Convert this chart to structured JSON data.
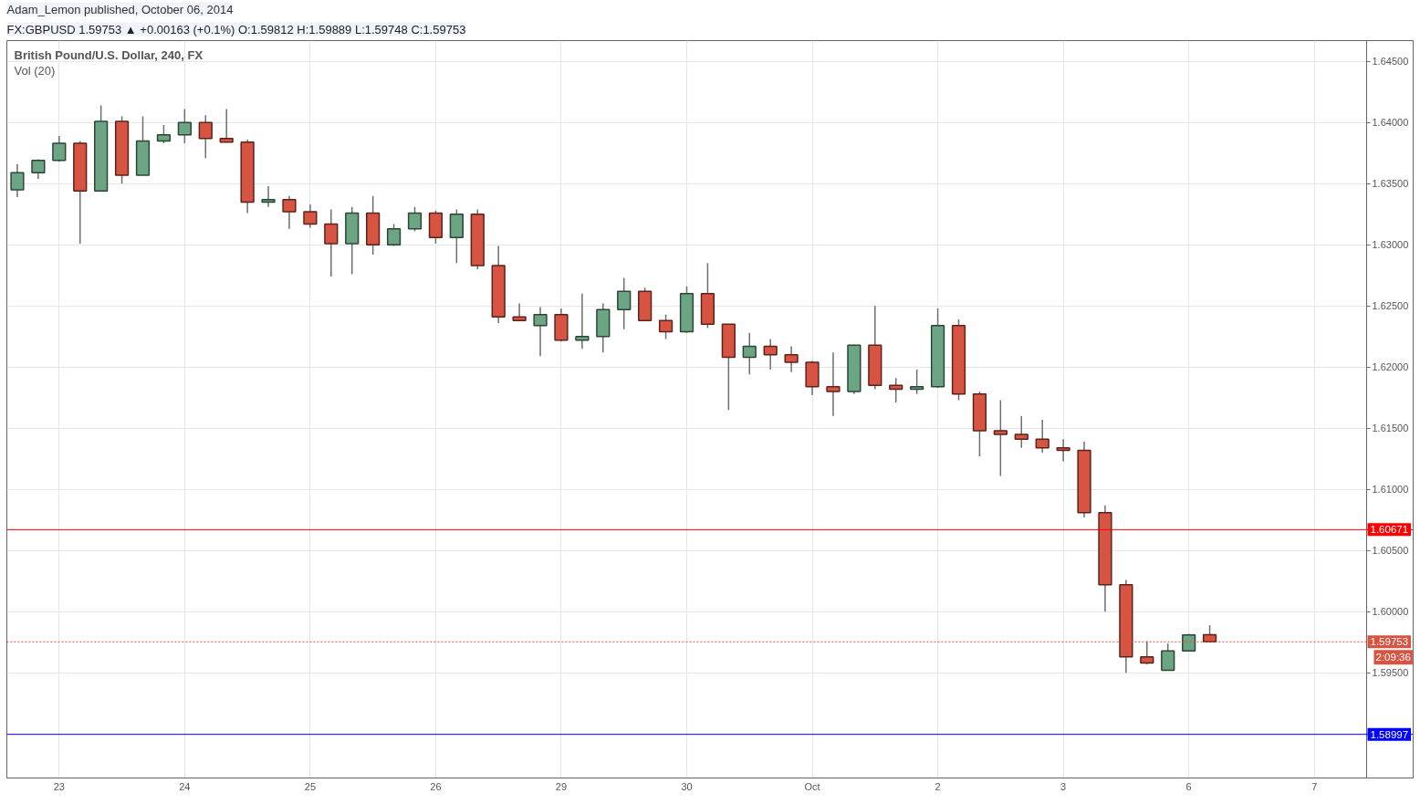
{
  "chart_data": {
    "type": "candlestick",
    "title": "British Pound/U.S. Dollar, 240, FX",
    "subtitle": "FX:GBPUSD 1.59753 ▲ +0.00163 (+0.1%) O:1.59812 H:1.59889 L:1.59748 C:1.59753",
    "annotations": [
      "Adam_Lemon published, October 06, 2014",
      "Vol (20)",
      "2:09:36"
    ],
    "categories": [
      null,
      null,
      "23",
      null,
      null,
      null,
      null,
      null,
      "24",
      null,
      null,
      null,
      null,
      null,
      "25",
      null,
      null,
      null,
      null,
      null,
      "26",
      null,
      null,
      null,
      null,
      null,
      "29",
      null,
      null,
      null,
      null,
      null,
      "30",
      null,
      null,
      null,
      null,
      null,
      "Oct",
      null,
      null,
      null,
      null,
      null,
      "2",
      null,
      null,
      null,
      null,
      null,
      "3",
      null,
      null,
      null,
      null,
      null,
      "6",
      null,
      null,
      null,
      null,
      null,
      "7",
      null,
      null
    ],
    "ohlc": [
      [
        1.6345,
        1.6366,
        1.6339,
        1.6359
      ],
      [
        1.6359,
        1.637,
        1.6354,
        1.6369
      ],
      [
        1.6369,
        1.6389,
        1.6368,
        1.6383
      ],
      [
        1.6383,
        1.6385,
        1.6301,
        1.6344
      ],
      [
        1.6344,
        1.6414,
        1.6344,
        1.6401
      ],
      [
        1.6401,
        1.6405,
        1.635,
        1.6357
      ],
      [
        1.6357,
        1.6405,
        1.6357,
        1.6385
      ],
      [
        1.6385,
        1.6398,
        1.6383,
        1.639
      ],
      [
        1.639,
        1.6411,
        1.6383,
        1.64
      ],
      [
        1.64,
        1.6406,
        1.6371,
        1.6387
      ],
      [
        1.6387,
        1.6411,
        1.6384,
        1.6384
      ],
      [
        1.6384,
        1.6386,
        1.6326,
        1.6335
      ],
      [
        1.6335,
        1.6348,
        1.6331,
        1.6337
      ],
      [
        1.6337,
        1.634,
        1.6313,
        1.6327
      ],
      [
        1.6327,
        1.6333,
        1.6314,
        1.6317
      ],
      [
        1.6317,
        1.6329,
        1.6274,
        1.6301
      ],
      [
        1.6301,
        1.6331,
        1.6276,
        1.6326
      ],
      [
        1.6326,
        1.634,
        1.6292,
        1.63
      ],
      [
        1.63,
        1.6317,
        1.6299,
        1.6313
      ],
      [
        1.6313,
        1.6331,
        1.6311,
        1.6326
      ],
      [
        1.6326,
        1.6328,
        1.6301,
        1.6306
      ],
      [
        1.6306,
        1.6329,
        1.6285,
        1.6325
      ],
      [
        1.6325,
        1.6329,
        1.628,
        1.6283
      ],
      [
        1.6283,
        1.6299,
        1.6236,
        1.6241
      ],
      [
        1.6241,
        1.6252,
        1.6238,
        1.6238
      ],
      [
        1.6234,
        1.6249,
        1.6209,
        1.6243
      ],
      [
        1.6243,
        1.6248,
        1.6221,
        1.6222
      ],
      [
        1.6222,
        1.626,
        1.6215,
        1.6225
      ],
      [
        1.6225,
        1.6252,
        1.6212,
        1.6247
      ],
      [
        1.6247,
        1.6273,
        1.6231,
        1.6262
      ],
      [
        1.6262,
        1.6265,
        1.6238,
        1.6238
      ],
      [
        1.6238,
        1.6243,
        1.6223,
        1.6229
      ],
      [
        1.6229,
        1.6266,
        1.6228,
        1.626
      ],
      [
        1.626,
        1.6285,
        1.6232,
        1.6235
      ],
      [
        1.6235,
        1.6235,
        1.6165,
        1.6208
      ],
      [
        1.6208,
        1.6228,
        1.6194,
        1.6217
      ],
      [
        1.6217,
        1.6223,
        1.6198,
        1.621
      ],
      [
        1.621,
        1.6217,
        1.6196,
        1.6204
      ],
      [
        1.6204,
        1.6205,
        1.6177,
        1.6184
      ],
      [
        1.6184,
        1.6212,
        1.616,
        1.618
      ],
      [
        1.618,
        1.6218,
        1.6178,
        1.6218
      ],
      [
        1.6218,
        1.625,
        1.6182,
        1.6185
      ],
      [
        1.6185,
        1.6191,
        1.6171,
        1.6182
      ],
      [
        1.6182,
        1.6198,
        1.6178,
        1.6184
      ],
      [
        1.6184,
        1.6248,
        1.6183,
        1.6234
      ],
      [
        1.6234,
        1.6239,
        1.6173,
        1.6178
      ],
      [
        1.6178,
        1.618,
        1.6127,
        1.6148
      ],
      [
        1.6148,
        1.6173,
        1.6111,
        1.6145
      ],
      [
        1.6145,
        1.616,
        1.6134,
        1.6141
      ],
      [
        1.6141,
        1.6157,
        1.613,
        1.6134
      ],
      [
        1.6134,
        1.6141,
        1.6123,
        1.6132
      ],
      [
        1.6132,
        1.6139,
        1.6077,
        1.6081
      ],
      [
        1.6081,
        1.6087,
        1.6,
        1.6022
      ],
      [
        1.6022,
        1.6026,
        1.595,
        1.5963
      ],
      [
        1.5963,
        1.5976,
        1.5957,
        1.5958
      ],
      [
        1.5952,
        1.5974,
        1.5952,
        1.5968
      ],
      [
        1.5968,
        1.5982,
        1.5968,
        1.5981
      ],
      [
        1.59812,
        1.59889,
        1.59748,
        1.59753
      ],
      null,
      null,
      null,
      null,
      null,
      null,
      null
    ],
    "colors": [
      "#6ba583",
      "#6ba583",
      "#6ba583",
      "#d75442",
      "#6ba583",
      "#d75442",
      "#6ba583",
      "#6ba583",
      "#6ba583",
      "#d75442",
      "#d75442",
      "#d75442",
      "#6ba583",
      "#d75442",
      "#d75442",
      "#d75442",
      "#6ba583",
      "#d75442",
      "#6ba583",
      "#6ba583",
      "#d75442",
      "#6ba583",
      "#d75442",
      "#d75442",
      "#d75442",
      "#6ba583",
      "#d75442",
      "#6ba583",
      "#6ba583",
      "#6ba583",
      "#d75442",
      "#d75442",
      "#6ba583",
      "#d75442",
      "#d75442",
      "#6ba583",
      "#d75442",
      "#d75442",
      "#d75442",
      "#d75442",
      "#6ba583",
      "#d75442",
      "#d75442",
      "#6ba583",
      "#6ba583",
      "#d75442",
      "#d75442",
      "#d75442",
      "#d75442",
      "#d75442",
      "#d75442",
      "#d75442",
      "#d75442",
      "#d75442",
      "#d75442",
      "#6ba583",
      "#6ba583",
      "#d75442",
      null,
      null,
      null,
      null,
      null,
      null,
      null
    ],
    "ylim": [
      1.5864,
      1.6467
    ],
    "yticks": [
      {
        "value": 1.595,
        "label": "1.59500"
      },
      {
        "value": 1.6,
        "label": "1.60000"
      },
      {
        "value": 1.605,
        "label": "1.60500"
      },
      {
        "value": 1.61,
        "label": "1.61000"
      },
      {
        "value": 1.615,
        "label": "1.61500"
      },
      {
        "value": 1.62,
        "label": "1.62000"
      },
      {
        "value": 1.625,
        "label": "1.62500"
      },
      {
        "value": 1.63,
        "label": "1.63000"
      },
      {
        "value": 1.635,
        "label": "1.63500"
      },
      {
        "value": 1.64,
        "label": "1.64000"
      },
      {
        "value": 1.645,
        "label": "1.64500"
      }
    ],
    "ref_lines": [
      {
        "axis": "y",
        "value": 1.60671,
        "label": "1.60671",
        "color": "#ff0000"
      },
      {
        "axis": "y",
        "value": 1.59753,
        "label": "1.59753",
        "color": "#d75442",
        "line_style": "dotted"
      },
      {
        "axis": "y",
        "value": 1.58997,
        "label": "1.58997",
        "color": "#0000ff"
      }
    ],
    "grid": true
  }
}
